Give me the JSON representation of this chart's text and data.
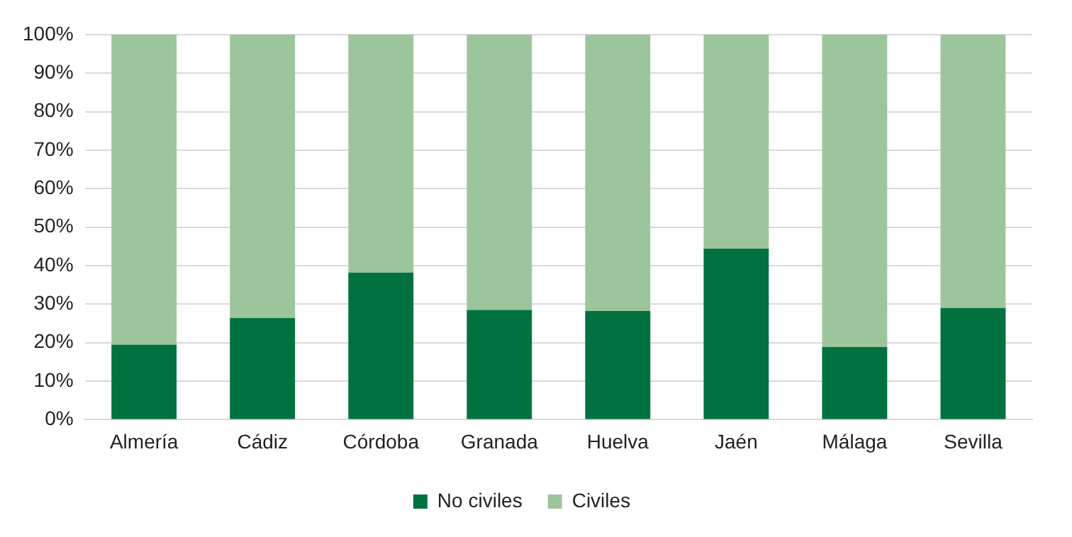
{
  "chart_data": {
    "type": "bar",
    "stacked": true,
    "categories": [
      "Almería",
      "Cádiz",
      "Córdoba",
      "Granada",
      "Huelva",
      "Jaén",
      "Málaga",
      "Sevilla"
    ],
    "series": [
      {
        "name": "No civiles",
        "color": "#00713f",
        "values": [
          19.5,
          26.4,
          38.2,
          28.5,
          28.2,
          44.4,
          18.9,
          29.0
        ]
      },
      {
        "name": "Civiles",
        "color": "#9dc59c",
        "values": [
          80.5,
          73.6,
          61.8,
          71.5,
          71.8,
          55.6,
          81.1,
          71.0
        ]
      }
    ],
    "ylim": [
      0,
      100
    ],
    "yticks": [
      {
        "value": 0,
        "label": "0%"
      },
      {
        "value": 10,
        "label": "10%"
      },
      {
        "value": 20,
        "label": "20%"
      },
      {
        "value": 30,
        "label": "30%"
      },
      {
        "value": 40,
        "label": "40%"
      },
      {
        "value": 50,
        "label": "50%"
      },
      {
        "value": 60,
        "label": "60%"
      },
      {
        "value": 70,
        "label": "70%"
      },
      {
        "value": 80,
        "label": "80%"
      },
      {
        "value": 90,
        "label": "90%"
      },
      {
        "value": 100,
        "label": "100%"
      }
    ],
    "grid": "y",
    "legend": "bottom"
  }
}
